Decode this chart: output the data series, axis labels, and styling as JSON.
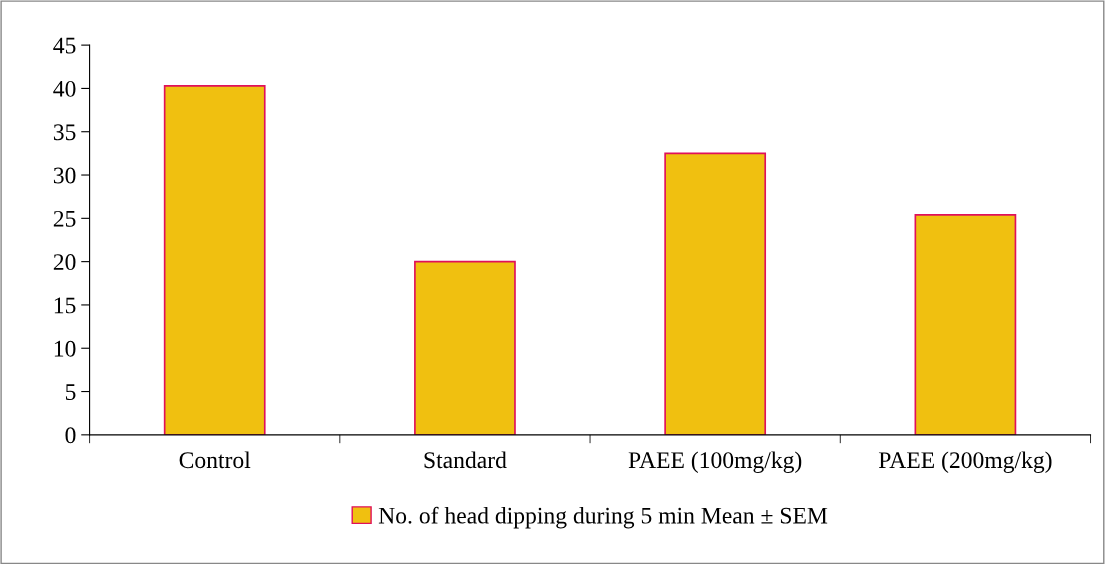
{
  "chart_data": {
    "type": "bar",
    "categories": [
      "Control",
      "Standard",
      "PAEE (100mg/kg)",
      "PAEE (200mg/kg)"
    ],
    "series": [
      {
        "name": "No. of head dipping during 5 min Mean ± SEM",
        "color": "#f0c010",
        "values": [
          40.3,
          20.0,
          32.5,
          25.4
        ]
      }
    ],
    "ylim": [
      0,
      45
    ],
    "yticks": [
      0,
      5,
      10,
      15,
      20,
      25,
      30,
      35,
      40,
      45
    ],
    "grid": false,
    "legend": "bottom"
  }
}
